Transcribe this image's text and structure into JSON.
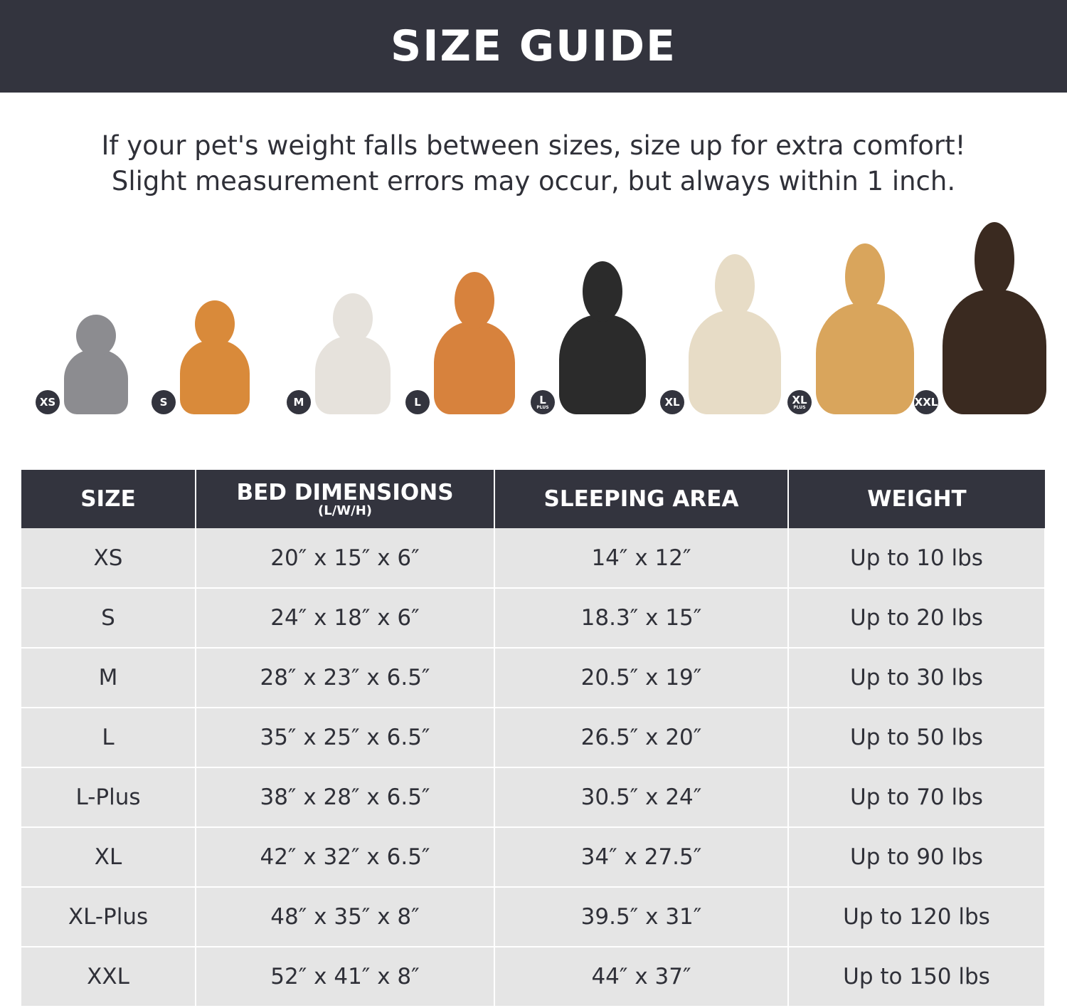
{
  "title": "SIZE GUIDE",
  "note": [
    "If your pet's weight falls between sizes, size up for extra comfort!",
    "Slight measurement errors may occur, but always within 1 inch."
  ],
  "pets": [
    {
      "badge": "XS",
      "sub": "",
      "color": "#8c8c90"
    },
    {
      "badge": "S",
      "sub": "",
      "color": "#d98a3a"
    },
    {
      "badge": "M",
      "sub": "",
      "color": "#e6e2dc"
    },
    {
      "badge": "L",
      "sub": "",
      "color": "#d7823d"
    },
    {
      "badge": "L",
      "sub": "PLUS",
      "color": "#2b2b2b"
    },
    {
      "badge": "XL",
      "sub": "",
      "color": "#e7dcc6"
    },
    {
      "badge": "XL",
      "sub": "PLUS",
      "color": "#d9a55c"
    },
    {
      "badge": "XXL",
      "sub": "",
      "color": "#3a2a20"
    }
  ],
  "table": {
    "headers": [
      "SIZE",
      "BED DIMENSIONS",
      "SLEEPING AREA",
      "WEIGHT"
    ],
    "header_sub": "(L/W/H)",
    "rows": [
      [
        "XS",
        "20″ x 15″ x 6″",
        "14″ x 12″",
        "Up to 10 lbs"
      ],
      [
        "S",
        "24″ x 18″ x 6″",
        "18.3″ x 15″",
        "Up to 20 lbs"
      ],
      [
        "M",
        "28″ x 23″ x 6.5″",
        "20.5″ x 19″",
        "Up to 30 lbs"
      ],
      [
        "L",
        "35″ x 25″ x 6.5″",
        "26.5″ x 20″",
        "Up to 50 lbs"
      ],
      [
        "L-Plus",
        "38″ x 28″ x 6.5″",
        "30.5″ x 24″",
        "Up to 70 lbs"
      ],
      [
        "XL",
        "42″ x 32″ x 6.5″",
        "34″ x 27.5″",
        "Up to 90 lbs"
      ],
      [
        "XL-Plus",
        "48″ x 35″ x 8″",
        "39.5″ x 31″",
        "Up to 120 lbs"
      ],
      [
        "XXL",
        "52″ x 41″ x 8″",
        "44″ x 37″",
        "Up to 150 lbs"
      ]
    ]
  }
}
